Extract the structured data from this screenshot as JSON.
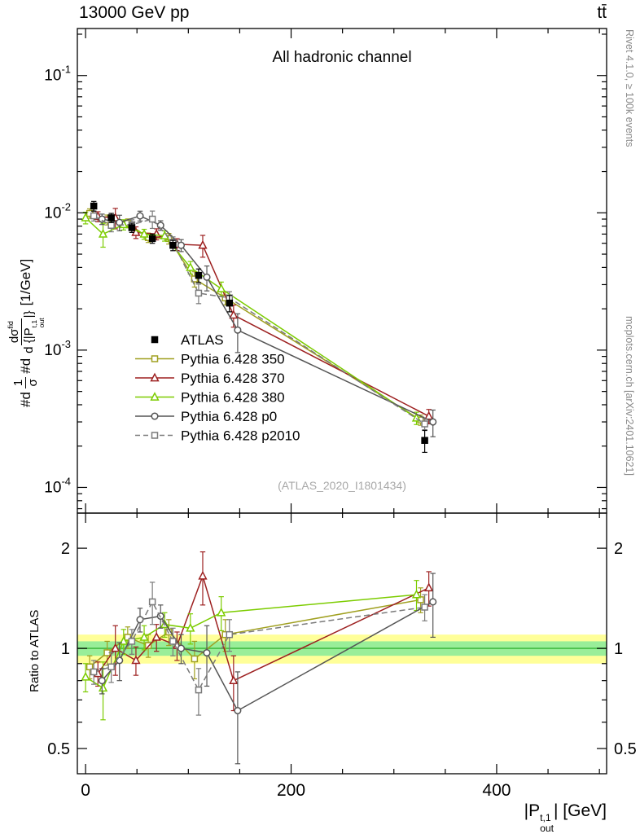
{
  "header": {
    "beam": "13000 GeV pp",
    "process": "tt̄"
  },
  "sidenotes": {
    "rivet": "Rivet 4.1.0, ≥ 100k events",
    "mcplots": "mcplots.cern.ch [arXiv:2401.10621]"
  },
  "main": {
    "channel": "All hadronic channel",
    "watermark": "(ATLAS_2020_I1801434)"
  },
  "ratio": {
    "ylabel": "Ratio to ATLAS"
  },
  "xaxis_label": {
    "pre": "|P",
    "sup": "t,1",
    "sub": "out",
    "post": "| [GeV]"
  },
  "yaxis_label": {
    "d1": "#d",
    "num1": "1",
    "den1": "σ",
    "d2": "#d",
    "num2": "dσ",
    "num2_sup": "fid",
    "den2_pre": "d {|P",
    "den2_sup": "t,1",
    "den2_sub": "out",
    "den2_post": "|}",
    "units": "[1/GeV]"
  },
  "chart_data": {
    "type": "line",
    "title": "All hadronic channel",
    "xlabel": "|P_out^{t,1}| [GeV]",
    "ylabel_main": "1/σ dσ/d{|P_out^{t,1}|} [1/GeV]",
    "ylabel_ratio": "Ratio to ATLAS",
    "legend_position": "left-middle",
    "grid": false,
    "xlim": [
      -8,
      507
    ],
    "x_ticks": [
      0,
      200,
      400
    ],
    "x_minor_step": 50,
    "main_ylog": true,
    "main_ylim": [
      6.5e-05,
      0.22
    ],
    "main_ytick_exponents": [
      -1,
      -2,
      -3,
      -4
    ],
    "ratio_ylog": true,
    "ratio_ylim": [
      0.42,
      2.55
    ],
    "ratio_yticks": [
      0.5,
      1,
      2
    ],
    "bands": {
      "outer": {
        "lo": 0.9,
        "hi": 1.1,
        "color": "#ffff99"
      },
      "inner": {
        "lo": 0.95,
        "hi": 1.05,
        "color": "#99ee99"
      },
      "center_color": "#44bb44"
    },
    "x": [
      8,
      25,
      45,
      65,
      85,
      110,
      140,
      330
    ],
    "series": [
      {
        "label": "ATLAS",
        "type": "data",
        "color": "#000000",
        "marker": "square",
        "line": "none",
        "xoff": 0,
        "y": [
          0.0112,
          0.0092,
          0.0078,
          0.0065,
          0.0058,
          0.0035,
          0.0022,
          0.00022
        ],
        "yerr": [
          0.0009,
          0.0007,
          0.0006,
          0.0005,
          0.0005,
          0.0004,
          0.0003,
          4e-05
        ]
      },
      {
        "label": "Pythia 6.428 350",
        "color": "#a0a020",
        "marker": "square",
        "line": "solid",
        "xoff": -4,
        "y": [
          0.0099,
          0.0089,
          0.0084,
          0.0066,
          0.0065,
          0.0033,
          0.0024,
          0.00031
        ],
        "ratio": [
          0.88,
          0.97,
          1.08,
          1.02,
          1.12,
          0.93,
          1.1,
          1.4
        ],
        "ratio_err": [
          0.07,
          0.08,
          0.08,
          0.08,
          0.1,
          0.12,
          0.12,
          0.12
        ]
      },
      {
        "label": "Pythia 6.428 370",
        "color": "#9d2020",
        "marker": "triangle",
        "line": "solid",
        "xoff": 4,
        "y": [
          0.0094,
          0.0092,
          0.0072,
          0.007,
          0.0059,
          0.0058,
          0.0018,
          0.00033
        ],
        "ratio": [
          0.84,
          1.0,
          0.92,
          1.08,
          1.02,
          1.65,
          0.8,
          1.52
        ],
        "ratio_err": [
          0.07,
          0.17,
          0.09,
          0.1,
          0.1,
          0.3,
          0.15,
          0.18
        ]
      },
      {
        "label": "Pythia 6.428 380",
        "color": "#7ccc00",
        "marker": "triangle",
        "line": "solid",
        "xoff": -8,
        "y": [
          0.0092,
          0.007,
          0.0082,
          0.007,
          0.0068,
          0.004,
          0.0028,
          0.00032
        ],
        "ratio": [
          0.82,
          0.76,
          1.05,
          1.08,
          1.18,
          1.15,
          1.28,
          1.45
        ],
        "ratio_err": [
          0.08,
          0.15,
          0.09,
          0.09,
          0.1,
          0.12,
          0.15,
          0.15
        ]
      },
      {
        "label": "Pythia 6.428 p0",
        "color": "#555555",
        "marker": "circle",
        "line": "solid",
        "xoff": 8,
        "y": [
          0.009,
          0.0085,
          0.0095,
          0.0081,
          0.0058,
          0.0034,
          0.0014,
          0.0003
        ],
        "ratio": [
          0.8,
          0.92,
          1.22,
          1.25,
          1.0,
          0.97,
          0.65,
          1.38
        ],
        "ratio_err": [
          0.07,
          0.12,
          0.1,
          0.1,
          0.1,
          0.2,
          0.2,
          0.3
        ]
      },
      {
        "label": "Pythia 6.428 p2010",
        "color": "#7a7a7a",
        "marker": "square",
        "line": "dashed",
        "xoff": 0,
        "y": [
          0.0095,
          0.0081,
          0.0082,
          0.009,
          0.0061,
          0.0026,
          0.0024,
          0.00029
        ],
        "ratio": [
          0.85,
          0.88,
          1.05,
          1.38,
          1.05,
          0.75,
          1.1,
          1.33
        ],
        "ratio_err": [
          0.07,
          0.09,
          0.09,
          0.2,
          0.1,
          0.12,
          0.12,
          0.12
        ]
      }
    ]
  }
}
